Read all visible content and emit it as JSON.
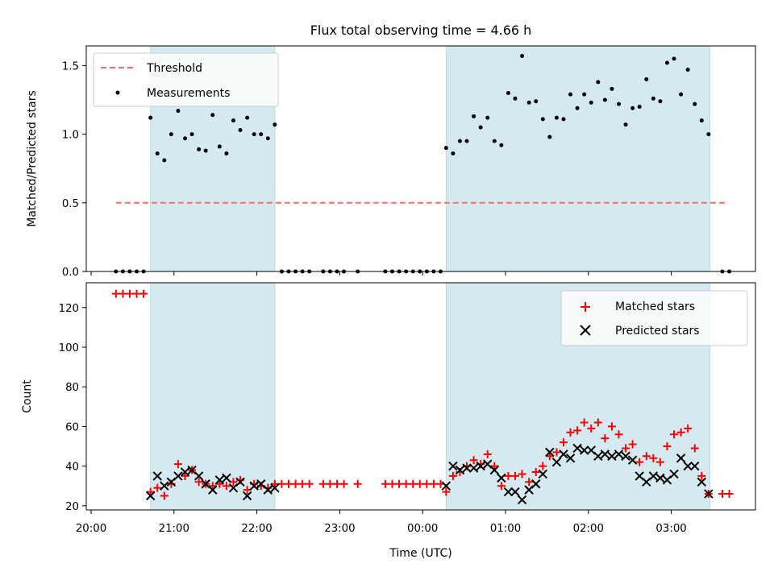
{
  "chart_data": [
    {
      "type": "scatter",
      "title": "Flux total observing time = 4.66 h",
      "xlabel": "",
      "ylabel": "Matched/Predicted stars",
      "xlim": [
        "20:00",
        "04:00"
      ],
      "ylim": [
        0,
        1.65
      ],
      "yticks": [
        0.0,
        0.5,
        1.0,
        1.5
      ],
      "ytick_labels": [
        "0.0",
        "0.5",
        "1.0",
        "1.5"
      ],
      "grid": false,
      "legend": {
        "position": "top-left",
        "entries": [
          "Threshold",
          "Measurements"
        ]
      },
      "shaded_intervals": [
        [
          "20:43",
          "22:13"
        ],
        [
          "00:17",
          "03:28"
        ]
      ],
      "shade_color": "#d4eaf0",
      "series": [
        {
          "name": "Threshold",
          "kind": "dashed-line",
          "color": "#ff6b6b",
          "x": [
            "20:18",
            "03:40"
          ],
          "y": [
            0.5,
            0.5
          ]
        },
        {
          "name": "Measurements",
          "kind": "points",
          "color": "#000000",
          "x": [
            "20:18",
            "20:23",
            "20:28",
            "20:33",
            "20:38",
            "20:43",
            "20:48",
            "20:53",
            "20:58",
            "21:03",
            "21:08",
            "21:13",
            "21:18",
            "21:23",
            "21:28",
            "21:33",
            "21:38",
            "21:43",
            "21:48",
            "21:53",
            "21:58",
            "22:03",
            "22:08",
            "22:13",
            "22:18",
            "22:23",
            "22:28",
            "22:33",
            "22:38",
            "22:48",
            "22:53",
            "22:58",
            "23:03",
            "23:13",
            "23:33",
            "23:38",
            "23:43",
            "23:48",
            "23:53",
            "23:58",
            "00:03",
            "00:08",
            "00:13",
            "00:17",
            "00:22",
            "00:27",
            "00:32",
            "00:37",
            "00:42",
            "00:47",
            "00:52",
            "00:57",
            "01:02",
            "01:07",
            "01:12",
            "01:17",
            "01:22",
            "01:27",
            "01:32",
            "01:37",
            "01:42",
            "01:47",
            "01:52",
            "01:57",
            "02:02",
            "02:07",
            "02:12",
            "02:17",
            "02:22",
            "02:27",
            "02:32",
            "02:37",
            "02:42",
            "02:47",
            "02:52",
            "02:57",
            "03:02",
            "03:07",
            "03:12",
            "03:17",
            "03:22",
            "03:27",
            "03:37",
            "03:42"
          ],
          "y": [
            0,
            0,
            0,
            0,
            0,
            1.12,
            0.86,
            0.81,
            1.0,
            1.17,
            0.97,
            1.0,
            0.89,
            0.88,
            1.14,
            0.91,
            0.86,
            1.1,
            1.03,
            1.12,
            1.0,
            1.0,
            0.97,
            1.07,
            0,
            0,
            0,
            0,
            0,
            0,
            0,
            0,
            0,
            0,
            0,
            0,
            0,
            0,
            0,
            0,
            0,
            0,
            0,
            0.9,
            0.86,
            0.95,
            0.95,
            1.13,
            1.05,
            1.12,
            0.95,
            0.92,
            1.3,
            1.26,
            1.57,
            1.23,
            1.24,
            1.11,
            0.98,
            1.12,
            1.11,
            1.29,
            1.19,
            1.29,
            1.23,
            1.38,
            1.25,
            1.33,
            1.22,
            1.07,
            1.19,
            1.2,
            1.4,
            1.26,
            1.24,
            1.52,
            1.55,
            1.29,
            1.47,
            1.22,
            1.1,
            1.0,
            0,
            0
          ]
        }
      ]
    },
    {
      "type": "scatter",
      "title": "",
      "xlabel": "Time (UTC)",
      "ylabel": "Count",
      "xlim": [
        "20:00",
        "04:00"
      ],
      "xticks": [
        "20:00",
        "21:00",
        "22:00",
        "23:00",
        "00:00",
        "01:00",
        "02:00",
        "03:00"
      ],
      "ylim": [
        18,
        132
      ],
      "yticks": [
        20,
        40,
        60,
        80,
        100,
        120
      ],
      "ytick_labels": [
        "20",
        "40",
        "60",
        "80",
        "100",
        "120"
      ],
      "grid": false,
      "legend": {
        "position": "top-right",
        "entries": [
          "Matched stars",
          "Predicted stars"
        ]
      },
      "shaded_intervals": [
        [
          "20:43",
          "22:13"
        ],
        [
          "00:17",
          "03:28"
        ]
      ],
      "shade_color": "#d4eaf0",
      "series": [
        {
          "name": "Matched stars",
          "marker": "+",
          "color": "#ff0000",
          "x": [
            "20:18",
            "20:23",
            "20:28",
            "20:33",
            "20:38",
            "20:43",
            "20:48",
            "20:53",
            "20:58",
            "21:03",
            "21:08",
            "21:13",
            "21:18",
            "21:23",
            "21:28",
            "21:33",
            "21:38",
            "21:43",
            "21:48",
            "21:53",
            "21:58",
            "22:03",
            "22:08",
            "22:13",
            "22:18",
            "22:23",
            "22:28",
            "22:33",
            "22:38",
            "22:48",
            "22:53",
            "22:58",
            "23:03",
            "23:13",
            "23:33",
            "23:38",
            "23:43",
            "23:48",
            "23:53",
            "23:58",
            "00:03",
            "00:08",
            "00:13",
            "00:17",
            "00:22",
            "00:27",
            "00:32",
            "00:37",
            "00:42",
            "00:47",
            "00:52",
            "00:57",
            "01:02",
            "01:07",
            "01:12",
            "01:17",
            "01:22",
            "01:27",
            "01:32",
            "01:37",
            "01:42",
            "01:47",
            "01:52",
            "01:57",
            "02:02",
            "02:07",
            "02:12",
            "02:17",
            "02:22",
            "02:27",
            "02:32",
            "02:37",
            "02:42",
            "02:47",
            "02:52",
            "02:57",
            "03:02",
            "03:07",
            "03:12",
            "03:17",
            "03:22",
            "03:27",
            "03:37",
            "03:42"
          ],
          "y": [
            127,
            127,
            127,
            127,
            127,
            27,
            29,
            25,
            31,
            41,
            35,
            38,
            32,
            31,
            30,
            31,
            30,
            32,
            33,
            28,
            31,
            30,
            29,
            31,
            31,
            31,
            31,
            31,
            31,
            31,
            31,
            31,
            31,
            31,
            31,
            31,
            31,
            31,
            31,
            31,
            31,
            31,
            31,
            27,
            35,
            37,
            40,
            43,
            41,
            46,
            40,
            30,
            35,
            35,
            36,
            32,
            37,
            40,
            45,
            47,
            52,
            57,
            58,
            62,
            59,
            62,
            54,
            60,
            56,
            49,
            51,
            42,
            45,
            44,
            42,
            50,
            56,
            57,
            59,
            49,
            35,
            26,
            26,
            26
          ]
        },
        {
          "name": "Predicted stars",
          "marker": "x",
          "color": "#000000",
          "x": [
            "20:43",
            "20:48",
            "20:53",
            "20:58",
            "21:03",
            "21:08",
            "21:13",
            "21:18",
            "21:23",
            "21:28",
            "21:33",
            "21:38",
            "21:43",
            "21:48",
            "21:53",
            "21:58",
            "22:03",
            "22:08",
            "22:13",
            "00:17",
            "00:22",
            "00:27",
            "00:32",
            "00:37",
            "00:42",
            "00:47",
            "00:52",
            "00:57",
            "01:02",
            "01:07",
            "01:12",
            "01:17",
            "01:22",
            "01:27",
            "01:32",
            "01:37",
            "01:42",
            "01:47",
            "01:52",
            "01:57",
            "02:02",
            "02:07",
            "02:12",
            "02:17",
            "02:22",
            "02:27",
            "02:32",
            "02:37",
            "02:42",
            "02:47",
            "02:52",
            "02:57",
            "03:02",
            "03:07",
            "03:12",
            "03:17",
            "03:22",
            "03:27"
          ],
          "y": [
            25,
            35,
            30,
            32,
            35,
            37,
            38,
            35,
            31,
            28,
            33,
            34,
            29,
            32,
            25,
            30,
            31,
            28,
            29,
            30,
            40,
            38,
            39,
            39,
            40,
            41,
            38,
            34,
            27,
            27,
            23,
            28,
            31,
            36,
            47,
            42,
            46,
            44,
            49,
            48,
            48,
            45,
            46,
            45,
            46,
            45,
            43,
            35,
            32,
            35,
            34,
            33,
            36,
            44,
            40,
            40,
            32,
            26
          ]
        }
      ]
    }
  ]
}
